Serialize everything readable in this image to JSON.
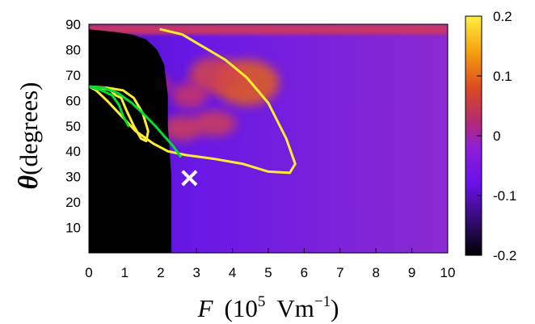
{
  "chart_data": {
    "type": "heatmap",
    "x_ticks": [
      "0",
      "1",
      "2",
      "3",
      "4",
      "5",
      "6",
      "7",
      "8",
      "9",
      "10"
    ],
    "y_ticks": [
      "10",
      "20",
      "30",
      "40",
      "50",
      "60",
      "70",
      "80",
      "90"
    ],
    "xlim": [
      0,
      10
    ],
    "ylim": [
      0,
      90
    ],
    "xlabel": {
      "var": "F",
      "open": "(10",
      "exp": "5",
      "unit": "Vm",
      "unit_exp": "−1",
      "close": ")"
    },
    "ylabel": {
      "symbol": "θ",
      "text": "(degrees)"
    },
    "colorbar": {
      "range": [
        -0.2,
        0.2
      ],
      "ticks": [
        "0.2",
        "0.1",
        "0",
        "-0.1",
        "-0.2"
      ],
      "tick_values": [
        0.2,
        0.1,
        0,
        -0.1,
        -0.2
      ],
      "colors": [
        "#000000",
        "#2a0a5e",
        "#6a10e8",
        "#9a20c8",
        "#c02a7a",
        "#e05a20",
        "#f5a010",
        "#ffef40"
      ]
    },
    "regions": {
      "black_region_boundary": [
        [
          0,
          88
        ],
        [
          0.7,
          87
        ],
        [
          1.2,
          86
        ],
        [
          1.6,
          84
        ],
        [
          1.9,
          80
        ],
        [
          2.1,
          74
        ],
        [
          2.2,
          62
        ],
        [
          2.2,
          50
        ],
        [
          2.25,
          40
        ],
        [
          2.3,
          30
        ],
        [
          2.3,
          0
        ]
      ],
      "background_value": -0.07,
      "top_band_value": 0.04,
      "hot_blobs": [
        {
          "x": 4.4,
          "y": 67,
          "rx": 0.9,
          "ry": 9,
          "value": 0.09
        },
        {
          "x": 3.5,
          "y": 70,
          "rx": 0.7,
          "ry": 7,
          "value": 0.06
        },
        {
          "x": 2.6,
          "y": 49,
          "rx": 0.55,
          "ry": 5,
          "value": 0.05
        },
        {
          "x": 3.5,
          "y": 51,
          "rx": 0.6,
          "ry": 5,
          "value": 0.05
        },
        {
          "x": 2.8,
          "y": 62,
          "rx": 0.5,
          "ry": 5,
          "value": 0.04
        },
        {
          "x": 1.8,
          "y": 66,
          "rx": 0.5,
          "ry": 4,
          "value": 0.03
        }
      ]
    },
    "curves": [
      {
        "color": "#ffee33",
        "points": [
          [
            2.0,
            88
          ],
          [
            2.6,
            86
          ],
          [
            3.2,
            81
          ],
          [
            3.8,
            76
          ],
          [
            4.4,
            69
          ],
          [
            5.0,
            59
          ],
          [
            5.5,
            45
          ],
          [
            5.75,
            35
          ],
          [
            5.6,
            31.5
          ],
          [
            5.0,
            32
          ],
          [
            4.3,
            35
          ],
          [
            3.5,
            37
          ],
          [
            2.7,
            38.5
          ],
          [
            2.2,
            40
          ],
          [
            1.8,
            43
          ],
          [
            1.3,
            48
          ],
          [
            0.9,
            54
          ],
          [
            0.5,
            60
          ],
          [
            0.2,
            64
          ],
          [
            0,
            65.5
          ]
        ]
      },
      {
        "color": "#ffee33",
        "points": [
          [
            0,
            65.5
          ],
          [
            0.5,
            65
          ],
          [
            0.95,
            64
          ],
          [
            1.25,
            61
          ],
          [
            1.5,
            55
          ],
          [
            1.65,
            48
          ],
          [
            1.6,
            44
          ],
          [
            1.45,
            45
          ],
          [
            1.25,
            50
          ],
          [
            1.05,
            56
          ],
          [
            0.9,
            61
          ],
          [
            0.75,
            62
          ],
          [
            0.6,
            64
          ],
          [
            0.3,
            65
          ],
          [
            0,
            65.5
          ]
        ]
      },
      {
        "color": "#00dd33",
        "points": [
          [
            0,
            65.5
          ],
          [
            0.4,
            65
          ],
          [
            0.8,
            63
          ],
          [
            1.2,
            59
          ],
          [
            1.5,
            55
          ],
          [
            1.85,
            50
          ],
          [
            2.1,
            46
          ],
          [
            2.35,
            42
          ],
          [
            2.55,
            38
          ]
        ]
      },
      {
        "color": "#00dd33",
        "points": [
          [
            0,
            65.5
          ],
          [
            0.35,
            64
          ],
          [
            0.65,
            62
          ],
          [
            0.85,
            58
          ],
          [
            0.95,
            54
          ],
          [
            1.1,
            50
          ]
        ]
      }
    ],
    "marker": {
      "symbol": "×",
      "x": 2.8,
      "y": 29.5,
      "color": "#ffffff"
    }
  }
}
